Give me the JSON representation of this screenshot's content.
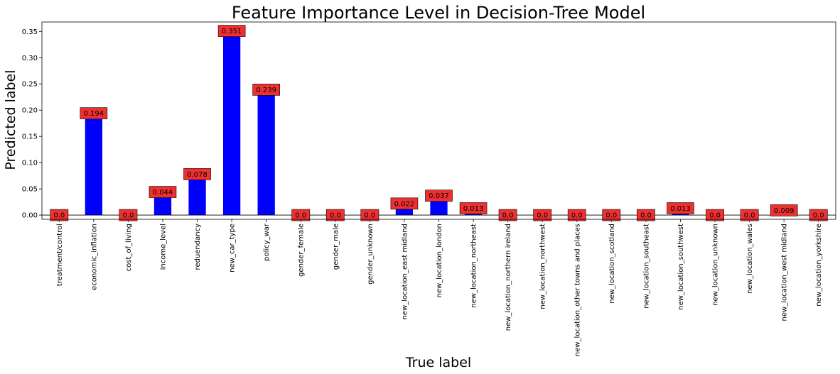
{
  "chart_data": {
    "type": "bar",
    "title": "Feature Importance Level in Decision-Tree Model",
    "xlabel": "True label",
    "ylabel": "Predicted label",
    "ylim": [
      -0.008,
      0.368
    ],
    "yticks": [
      "0.00",
      "0.05",
      "0.10",
      "0.15",
      "0.20",
      "0.25",
      "0.30",
      "0.35"
    ],
    "categories": [
      "treatment/control",
      "economic_inflation",
      "cost_of_living",
      "income_level",
      "reduendancy",
      "new_car_type",
      "policy_war",
      "gender_female",
      "gender_male",
      "gender_unknown",
      "new_location_east midland",
      "new_location_london",
      "new_location_northeast",
      "new_location_northern ireland",
      "new_location_northwest",
      "new_location_other towns and places",
      "new_location_scotland",
      "new_location_southeast",
      "new_location_southwest",
      "new_location_unknown",
      "new_location_wales",
      "new_location_west midland",
      "new_location_yorkshire"
    ],
    "values": [
      0.0,
      0.194,
      0.0,
      0.044,
      0.078,
      0.351,
      0.239,
      0.0,
      0.0,
      0.0,
      0.022,
      0.037,
      0.013,
      0.0,
      0.0,
      0.0,
      0.0,
      0.0,
      0.013,
      0.0,
      0.0,
      0.009,
      0.0
    ],
    "data_labels": [
      "0.0",
      "0.194",
      "0.0",
      "0.044",
      "0.078",
      "0.351",
      "0.239",
      "0.0",
      "0.0",
      "0.0",
      "0.022",
      "0.037",
      "0.013",
      "0.0",
      "0.0",
      "0.0",
      "0.0",
      "0.0",
      "0.013",
      "0.0",
      "0.0",
      "0.009",
      "0.0"
    ],
    "grid": false,
    "legend": "none",
    "colors": {
      "bar": "#0000ff",
      "label_box": "#f03030",
      "label_box_edge": "#000000",
      "axis": "#000000"
    }
  }
}
